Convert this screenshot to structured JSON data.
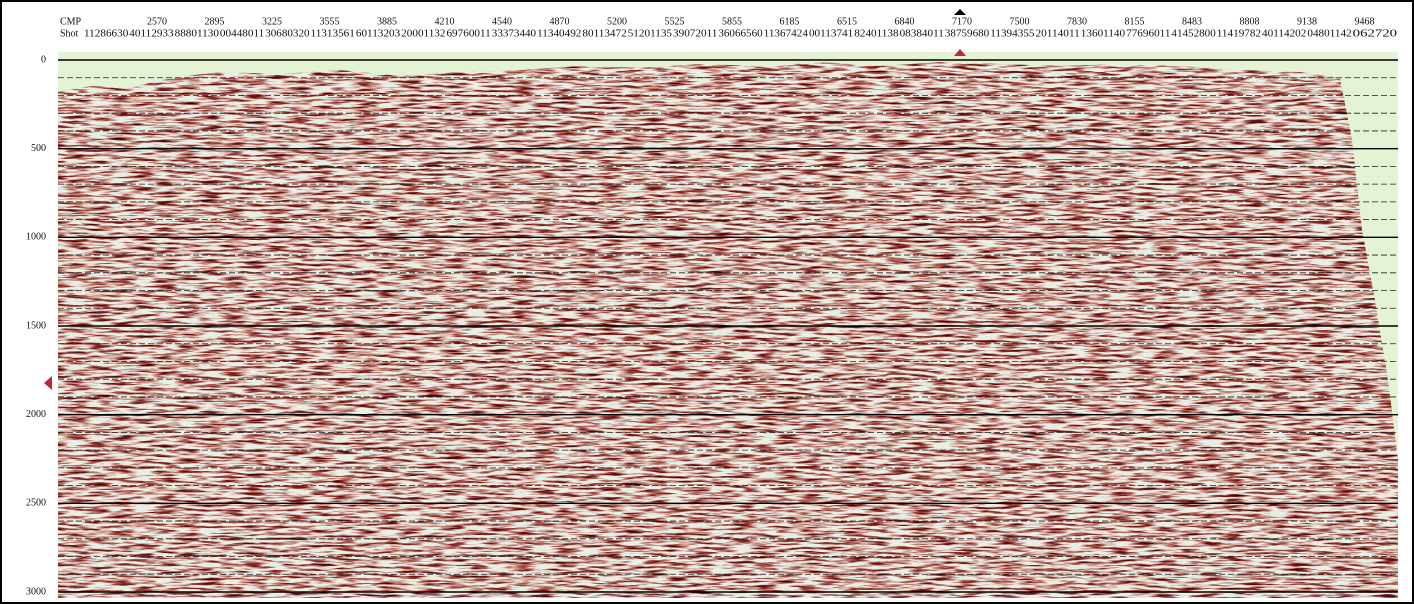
{
  "header": {
    "cmp_label": "CMP",
    "cmp_values": [
      "2570",
      "2895",
      "3225",
      "3555",
      "3885",
      "4210",
      "4540",
      "4870",
      "5200",
      "5525",
      "5855",
      "6185",
      "6515",
      "6840",
      "7170",
      "7500",
      "7830",
      "8155",
      "8483",
      "8808",
      "9138",
      "9468"
    ],
    "shot_label": "Shot",
    "shot_values": [
      "11286630",
      "40112933",
      "88801130",
      "00448011",
      "30680320",
      "11313561",
      "60113203",
      "20001132",
      "69760011",
      "33373440",
      "11340492",
      "80113472",
      "51201135",
      "39072011",
      "36066560",
      "11367424",
      "00113741",
      "82401138",
      "08384011",
      "38759680",
      "11394355",
      "20114011",
      "13601140",
      "77696011",
      "41452800",
      "11419782",
      "40114202",
      "04801142",
      "062720"
    ]
  },
  "time_axis": {
    "labels": [
      "0",
      "500",
      "1000",
      "1500",
      "2000",
      "2500",
      "3000"
    ]
  }
}
